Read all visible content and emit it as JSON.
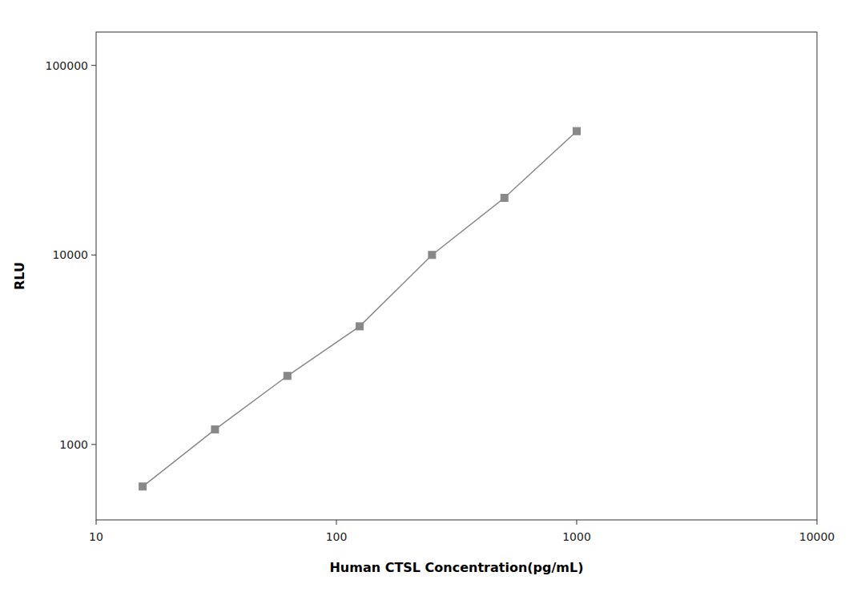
{
  "chart_data": {
    "type": "line",
    "x_label": "Human CTSL Concentration(pg/mL)",
    "y_label": "RLU",
    "x": [
      15.625,
      31.25,
      62.5,
      125,
      250,
      500,
      1000
    ],
    "values": [
      600,
      1200,
      2300,
      4200,
      10000,
      20000,
      45000
    ],
    "color": "#888888",
    "marker": "square",
    "log": true,
    "xlim": [
      10,
      10000
    ],
    "ylim": [
      400,
      150000
    ],
    "xticks": [
      10,
      100,
      1000,
      10000
    ],
    "yticks": [
      1000,
      10000,
      100000
    ],
    "grid": false
  }
}
